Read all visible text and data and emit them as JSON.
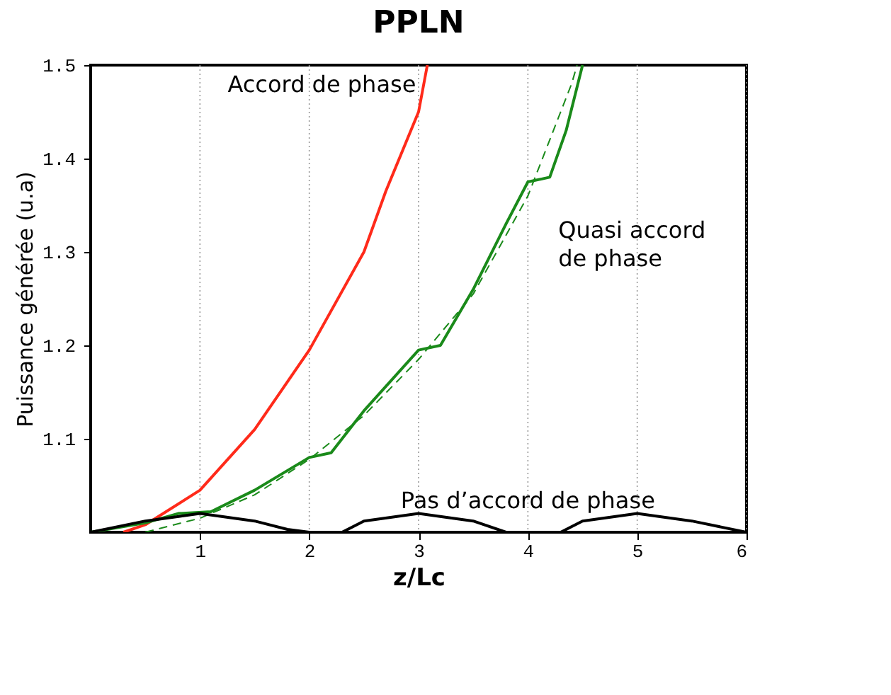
{
  "chart_data": {
    "type": "line",
    "title": "PPLN",
    "xlabel": "z/Lc",
    "ylabel": "Puissance générée (u.a)",
    "xlim": [
      0,
      6
    ],
    "ylim": [
      1.0,
      1.5
    ],
    "xticks": [
      1,
      2,
      3,
      4,
      5,
      6
    ],
    "yticks": [
      1.1,
      1.2,
      1.3,
      1.4,
      1.5
    ],
    "grid": "x",
    "series": [
      {
        "name": "Accord de phase",
        "color": "#ff2a1a",
        "line_style": "solid",
        "x": [
          0.3,
          0.5,
          1,
          1.5,
          2,
          2.5,
          2.7,
          3,
          3.08
        ],
        "values": [
          1.0,
          1.008,
          1.045,
          1.11,
          1.195,
          1.3,
          1.365,
          1.45,
          1.5
        ]
      },
      {
        "name": "Quasi accord de phase",
        "color": "#1a8a1a",
        "line_style": "solid",
        "x": [
          0,
          0.5,
          0.8,
          1.1,
          1.5,
          2,
          2.2,
          2.5,
          3,
          3.2,
          3.5,
          3.8,
          4,
          4.2,
          4.35,
          4.5
        ],
        "values": [
          1.0,
          1.01,
          1.02,
          1.022,
          1.045,
          1.08,
          1.085,
          1.13,
          1.195,
          1.2,
          1.26,
          1.33,
          1.375,
          1.38,
          1.43,
          1.5
        ]
      },
      {
        "color": "#1a8a1a",
        "line_style": "dashed",
        "x": [
          0.5,
          1,
          1.5,
          2,
          2.5,
          3,
          3.5,
          4,
          4.4,
          4.45
        ],
        "values": [
          1.0,
          1.015,
          1.04,
          1.078,
          1.125,
          1.185,
          1.255,
          1.36,
          1.48,
          1.5
        ]
      },
      {
        "name": "Pas d’accord de phase",
        "color": "#000000",
        "line_style": "solid",
        "x": [
          0,
          0.5,
          1,
          1.5,
          1.8,
          2,
          2.3,
          2.5,
          3,
          3.5,
          3.8,
          4,
          4.3,
          4.5,
          5,
          5.5,
          6
        ],
        "values": [
          1.0,
          1.012,
          1.02,
          1.012,
          1.003,
          1.0,
          1.0,
          1.012,
          1.02,
          1.012,
          1.0,
          1.0,
          1.0,
          1.012,
          1.02,
          1.012,
          1.0
        ]
      }
    ]
  }
}
